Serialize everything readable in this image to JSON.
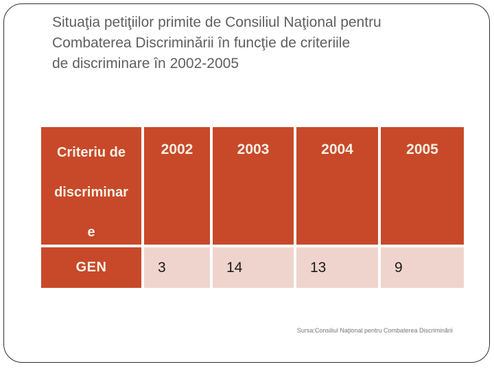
{
  "slide": {
    "title_lines": [
      "Situaţia petiţiilor primite de Consiliul Naţional pentru",
      "Combaterea Discriminării în funcţie de criteriile",
      "de discriminare în 2002-2005"
    ],
    "source": "Sursa:Consiliul Naţional pentru Combaterea Discriminării"
  },
  "table": {
    "header": {
      "criteria_lines": [
        "Criteriu de",
        "discriminar",
        "e"
      ],
      "years": [
        "2002",
        "2003",
        "2004",
        "2005"
      ]
    },
    "row": {
      "label": "GEN",
      "values": [
        "3",
        "14",
        "13",
        "9"
      ]
    }
  },
  "chart_data": {
    "type": "table",
    "title": "Situaţia petiţiilor primite de Consiliul Naţional pentru Combaterea Discriminării în funcţie de criteriile de discriminare în 2002-2005",
    "columns": [
      "Criteriu de discriminare",
      "2002",
      "2003",
      "2004",
      "2005"
    ],
    "rows": [
      {
        "label": "GEN",
        "values": [
          3,
          14,
          13,
          9
        ]
      }
    ],
    "source": "Sursa:Consiliul Naţional pentru Combaterea Discriminării"
  },
  "colors": {
    "accent_orange": "#C7492A",
    "row_pink": "#EFD4CD",
    "header_text": "#F8F1E4",
    "title_text": "#5F5F5F",
    "value_text": "#1A1A1A",
    "source_text": "#757575",
    "frame_border": "#2E2E2E"
  }
}
